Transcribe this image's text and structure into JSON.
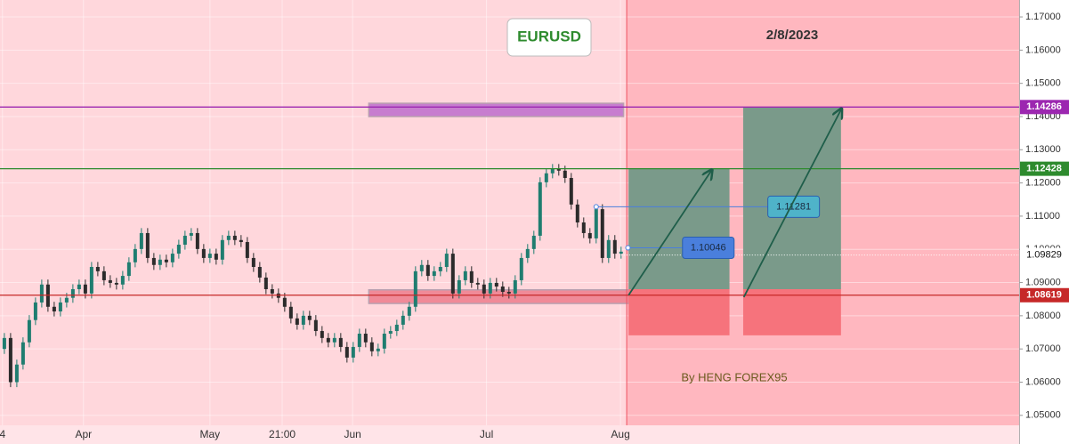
{
  "chart_data": {
    "type": "candlestick",
    "title": "EURUSD",
    "date": "2/8/2023",
    "credit": "By HENG FOREX95",
    "up_color": "#1f7d70",
    "down_color": "#2b2b2b",
    "grid": true,
    "xlim": [
      -0.7,
      162.9
    ],
    "ylim": [
      1.047,
      1.1751
    ],
    "xticks": [
      {
        "value": -0.3,
        "label": "4"
      },
      {
        "value": 12.7,
        "label": "Apr"
      },
      {
        "value": 33,
        "label": "May"
      },
      {
        "value": 44.6,
        "label": "21:00"
      },
      {
        "value": 55.9,
        "label": "Jun"
      },
      {
        "value": 77.4,
        "label": "Jul"
      },
      {
        "value": 98.9,
        "label": "Aug"
      }
    ],
    "yticks": [
      {
        "value": 1.17,
        "label": "1.17000"
      },
      {
        "value": 1.16,
        "label": "1.16000"
      },
      {
        "value": 1.15,
        "label": "1.15000"
      },
      {
        "value": 1.14,
        "label": "1.14000"
      },
      {
        "value": 1.13,
        "label": "1.13000"
      },
      {
        "value": 1.12,
        "label": "1.12000"
      },
      {
        "value": 1.11,
        "label": "1.11000"
      },
      {
        "value": 1.1,
        "label": "1.10000"
      },
      {
        "value": 1.09,
        "label": "1.09000"
      },
      {
        "value": 1.08,
        "label": "1.08000"
      },
      {
        "value": 1.07,
        "label": "1.07000"
      },
      {
        "value": 1.06,
        "label": "1.06000"
      },
      {
        "value": 1.05,
        "label": "1.05000"
      }
    ],
    "open": [
      1.07,
      1.0733,
      1.06,
      1.0653,
      1.072,
      1.0787,
      1.084,
      1.0894,
      1.0827,
      1.0813,
      1.084,
      1.0854,
      1.088,
      1.0894,
      1.0867,
      1.0947,
      1.0934,
      1.0907,
      1.0899,
      1.0894,
      1.092,
      1.0961,
      1.1001,
      1.1049,
      1.0974,
      1.0953,
      1.0969,
      1.0961,
      1.0987,
      1.1014,
      1.1041,
      1.1049,
      1.1001,
      1.0974,
      1.0987,
      1.0969,
      1.1028,
      1.1041,
      1.1028,
      1.1022,
      1.0974,
      1.0947,
      1.0915,
      1.088,
      1.0867,
      1.0854,
      1.0827,
      1.0792,
      1.0773,
      1.08,
      1.0787,
      1.0754,
      1.0733,
      1.072,
      1.0733,
      1.0706,
      1.0674,
      1.0706,
      1.0746,
      1.072,
      1.0693,
      1.0701,
      1.0746,
      1.0754,
      1.0773,
      1.08,
      1.0827,
      1.0934,
      1.0953,
      1.092,
      1.0934,
      1.0947,
      1.0987,
      1.0867,
      1.0907,
      1.0934,
      1.0899,
      1.0894,
      1.0867,
      1.0899,
      1.0888,
      1.0872,
      1.0867,
      1.0907,
      1.0974,
      1.1001,
      1.1041,
      1.1202,
      1.1229,
      1.1242,
      1.1237,
      1.1215,
      1.1135,
      1.1081,
      1.1049,
      1.1033,
      1.1121,
      1.0974,
      1.1028,
      1.0987
    ],
    "high": [
      1.0748,
      1.0748,
      1.0668,
      1.0735,
      1.0802,
      1.0855,
      1.0909,
      1.0909,
      1.0842,
      1.0855,
      1.0869,
      1.0895,
      1.0909,
      1.0909,
      1.0962,
      1.0962,
      1.0949,
      1.0922,
      1.0914,
      1.0935,
      1.0976,
      1.1016,
      1.1064,
      1.1064,
      1.0989,
      1.0984,
      1.0984,
      1.1002,
      1.1029,
      1.1056,
      1.1064,
      1.1064,
      1.1016,
      1.1002,
      1.1002,
      1.1043,
      1.1056,
      1.1056,
      1.1043,
      1.1037,
      1.0989,
      1.0962,
      1.093,
      1.0895,
      1.0882,
      1.0869,
      1.0842,
      1.0807,
      1.0815,
      1.0815,
      1.0802,
      1.0769,
      1.0748,
      1.0748,
      1.0748,
      1.0721,
      1.0721,
      1.0761,
      1.0761,
      1.0735,
      1.0716,
      1.0761,
      1.0769,
      1.0788,
      1.0815,
      1.0842,
      1.0949,
      1.0968,
      1.0968,
      1.0949,
      1.0962,
      1.1002,
      1.1002,
      1.0922,
      1.0949,
      1.0949,
      1.0914,
      1.0909,
      1.0914,
      1.0914,
      1.0903,
      1.0887,
      1.0922,
      1.0989,
      1.1016,
      1.1056,
      1.1217,
      1.1244,
      1.1257,
      1.1257,
      1.1252,
      1.123,
      1.115,
      1.1096,
      1.1064,
      1.1136,
      1.1136,
      1.1043,
      1.1043,
      1.1008
    ],
    "low": [
      1.0685,
      1.0585,
      1.0585,
      1.0638,
      1.0705,
      1.0772,
      1.0825,
      1.0812,
      1.0798,
      1.0798,
      1.0825,
      1.0839,
      1.0865,
      1.0852,
      1.0852,
      1.0919,
      1.0892,
      1.0884,
      1.0879,
      1.0879,
      1.0905,
      1.0946,
      1.0986,
      1.0959,
      1.0938,
      1.0938,
      1.0946,
      1.0946,
      1.0972,
      1.0999,
      1.1026,
      1.0986,
      1.0959,
      1.0959,
      1.0954,
      1.0954,
      1.1013,
      1.1013,
      1.1007,
      1.0959,
      1.0932,
      1.09,
      1.0865,
      1.0852,
      1.0839,
      1.0812,
      1.0777,
      1.0758,
      1.0758,
      1.0772,
      1.0739,
      1.0718,
      1.0705,
      1.0705,
      1.0691,
      1.0659,
      1.0659,
      1.0691,
      1.0705,
      1.0678,
      1.0678,
      1.0686,
      1.0731,
      1.0739,
      1.0758,
      1.0785,
      1.0812,
      1.0919,
      1.0905,
      1.0905,
      1.0919,
      1.0932,
      1.0852,
      1.0852,
      1.0892,
      1.0884,
      1.0879,
      1.0852,
      1.0852,
      1.0873,
      1.0857,
      1.0852,
      1.0852,
      1.0892,
      1.0959,
      1.0986,
      1.1026,
      1.1187,
      1.1214,
      1.1222,
      1.12,
      1.112,
      1.1066,
      1.1034,
      1.1018,
      1.1018,
      1.0959,
      1.0959,
      1.0972,
      1.0972
    ],
    "close": [
      1.0733,
      1.06,
      1.0653,
      1.072,
      1.0787,
      1.084,
      1.0894,
      1.0827,
      1.0813,
      1.084,
      1.0854,
      1.088,
      1.0894,
      1.0867,
      1.0947,
      1.0934,
      1.0907,
      1.0899,
      1.0894,
      1.092,
      1.0961,
      1.1001,
      1.1049,
      1.0974,
      1.0953,
      1.0969,
      1.0961,
      1.0987,
      1.1014,
      1.1041,
      1.1049,
      1.1001,
      1.0974,
      1.0987,
      1.0969,
      1.1028,
      1.1041,
      1.1028,
      1.1022,
      1.0974,
      1.0947,
      1.0915,
      1.088,
      1.0867,
      1.0854,
      1.0827,
      1.0792,
      1.0773,
      1.08,
      1.0787,
      1.0754,
      1.0733,
      1.072,
      1.0733,
      1.0706,
      1.0674,
      1.0706,
      1.0746,
      1.072,
      1.0693,
      1.0701,
      1.0746,
      1.0754,
      1.0773,
      1.08,
      1.0827,
      1.0934,
      1.0953,
      1.092,
      1.0934,
      1.0947,
      1.0987,
      1.0867,
      1.0907,
      1.0934,
      1.0899,
      1.0894,
      1.0867,
      1.0899,
      1.0888,
      1.0872,
      1.0867,
      1.0907,
      1.0974,
      1.1001,
      1.1041,
      1.1202,
      1.1229,
      1.1242,
      1.1237,
      1.1215,
      1.1135,
      1.1081,
      1.1049,
      1.1033,
      1.1121,
      1.0974,
      1.1028,
      1.0987,
      1.0993
    ],
    "divider_x": 99.9,
    "levels": [
      {
        "value": 1.14286,
        "label": "1.14286",
        "color": "#9c27b0"
      },
      {
        "value": 1.12428,
        "label": "1.12428",
        "color": "#2e8b2e"
      },
      {
        "value": 1.08619,
        "label": "1.08619",
        "color": "#c62828"
      }
    ],
    "current_price": {
      "value": 1.09829,
      "label": "1.09829"
    },
    "zones": [
      {
        "x": [
          58.5,
          99.4
        ],
        "y": [
          1.144,
          1.14
        ],
        "color": "#c77dcf"
      },
      {
        "x": [
          58.5,
          100.7
        ],
        "y": [
          1.0878,
          1.0837
        ],
        "color": "#f08a98"
      }
    ],
    "positions": [
      {
        "x": [
          100.2,
          116.4
        ],
        "target": 1.12428,
        "entry": 1.088,
        "stop": 1.0741
      },
      {
        "x": [
          118.6,
          134.3
        ],
        "target": 1.14286,
        "entry": 1.088,
        "stop": 1.0741
      }
    ],
    "arrows": [
      {
        "x": [
          100.2,
          113.6
        ],
        "y": [
          1.0862,
          1.124
        ]
      },
      {
        "x": [
          118.7,
          134.4
        ],
        "y": [
          1.0856,
          1.1424
        ]
      }
    ],
    "price_marks": [
      {
        "value": 1.11281,
        "label": "1.11281",
        "x": [
          95,
          126.7
        ],
        "color": "#4fb3c9"
      },
      {
        "value": 1.10046,
        "label": "1.10046",
        "x": [
          100.1,
          113
        ],
        "color": "#4a7fdc"
      }
    ]
  }
}
